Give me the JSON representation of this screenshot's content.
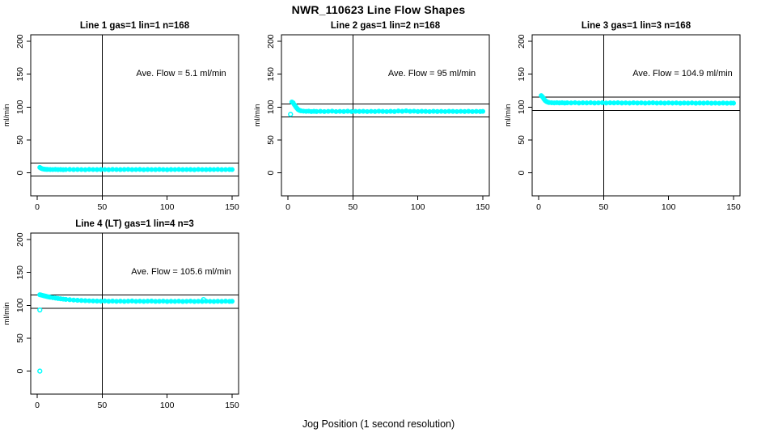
{
  "page_title": "NWR_110623  Line Flow Shapes",
  "x_axis_label": "Jog Position (1 second resolution)",
  "colors": {
    "points": "#00ffff",
    "axis": "#000000",
    "background": "#ffffff",
    "text": "#000000"
  },
  "chart_data": [
    {
      "id": "line1",
      "type": "scatter",
      "title": "Line 1 gas=1 lin=1 n=168",
      "ylabel": "ml/min",
      "annotation": "Ave. Flow =  5.1  ml/min",
      "ave_flow_ml_min": 5.1,
      "n": 168,
      "xlim": [
        -5,
        155
      ],
      "ylim": [
        -35,
        210
      ],
      "xticks": [
        "0",
        "50",
        "100",
        "150"
      ],
      "yticks": [
        "0",
        "50",
        "100",
        "150",
        "200"
      ],
      "vline_x": 50,
      "hlines": [
        15.1,
        -4.9
      ],
      "marker": "open-circle",
      "points": [
        [
          2,
          8.2
        ],
        [
          3,
          6.9
        ],
        [
          4,
          6.1
        ],
        [
          5,
          5.7
        ],
        [
          6,
          5.4
        ],
        [
          7,
          5.3
        ],
        [
          8,
          5.2
        ],
        [
          10,
          5.1
        ],
        [
          12,
          5.0
        ],
        [
          14,
          5.2
        ],
        [
          16,
          4.9
        ],
        [
          18,
          5.1
        ],
        [
          20,
          4.8
        ],
        [
          22,
          5.0
        ],
        [
          25,
          5.2
        ],
        [
          28,
          4.9
        ],
        [
          31,
          5.1
        ],
        [
          34,
          5.0
        ],
        [
          37,
          4.8
        ],
        [
          40,
          5.2
        ],
        [
          43,
          5.0
        ],
        [
          46,
          4.9
        ],
        [
          49,
          5.1
        ],
        [
          52,
          5.0
        ],
        [
          55,
          4.8
        ],
        [
          58,
          5.2
        ],
        [
          61,
          5.0
        ],
        [
          64,
          4.9
        ],
        [
          67,
          5.1
        ],
        [
          70,
          5.3
        ],
        [
          73,
          4.9
        ],
        [
          76,
          5.0
        ],
        [
          79,
          5.2
        ],
        [
          82,
          4.8
        ],
        [
          85,
          5.1
        ],
        [
          88,
          5.0
        ],
        [
          91,
          4.9
        ],
        [
          94,
          5.2
        ],
        [
          97,
          5.0
        ],
        [
          100,
          4.8
        ],
        [
          103,
          5.1
        ],
        [
          106,
          5.0
        ],
        [
          109,
          5.2
        ],
        [
          112,
          4.9
        ],
        [
          115,
          5.0
        ],
        [
          118,
          5.1
        ],
        [
          121,
          4.8
        ],
        [
          124,
          5.2
        ],
        [
          127,
          5.0
        ],
        [
          130,
          4.9
        ],
        [
          133,
          5.1
        ],
        [
          136,
          5.0
        ],
        [
          139,
          5.2
        ],
        [
          142,
          4.9
        ],
        [
          145,
          5.0
        ],
        [
          148,
          5.1
        ],
        [
          150,
          5.0
        ]
      ],
      "outliers": []
    },
    {
      "id": "line2",
      "type": "scatter",
      "title": "Line 2 gas=1 lin=2 n=168",
      "ylabel": "ml/min",
      "annotation": "Ave. Flow =  95  ml/min",
      "ave_flow_ml_min": 95,
      "n": 168,
      "xlim": [
        -5,
        155
      ],
      "ylim": [
        -35,
        210
      ],
      "xticks": [
        "0",
        "50",
        "100",
        "150"
      ],
      "yticks": [
        "0",
        "50",
        "100",
        "150",
        "200"
      ],
      "vline_x": 50,
      "hlines": [
        105,
        85
      ],
      "marker": "open-circle",
      "points": [
        [
          3,
          107.8
        ],
        [
          4,
          106.5
        ],
        [
          5,
          103.5
        ],
        [
          6,
          100.5
        ],
        [
          7,
          98.0
        ],
        [
          8,
          96.0
        ],
        [
          9,
          95.0
        ],
        [
          10,
          94.3
        ],
        [
          12,
          93.8
        ],
        [
          14,
          93.5
        ],
        [
          16,
          93.8
        ],
        [
          18,
          93.2
        ],
        [
          20,
          93.6
        ],
        [
          22,
          93.3
        ],
        [
          25,
          93.6
        ],
        [
          28,
          93.2
        ],
        [
          31,
          93.5
        ],
        [
          34,
          93.8
        ],
        [
          37,
          93.2
        ],
        [
          40,
          93.5
        ],
        [
          43,
          93.3
        ],
        [
          46,
          93.7
        ],
        [
          49,
          93.2
        ],
        [
          52,
          93.5
        ],
        [
          55,
          93.4
        ],
        [
          58,
          93.6
        ],
        [
          61,
          93.2
        ],
        [
          64,
          93.5
        ],
        [
          67,
          93.3
        ],
        [
          70,
          93.7
        ],
        [
          73,
          93.4
        ],
        [
          76,
          93.2
        ],
        [
          79,
          93.6
        ],
        [
          82,
          93.3
        ],
        [
          85,
          94.0
        ],
        [
          88,
          93.6
        ],
        [
          91,
          94.2
        ],
        [
          94,
          93.5
        ],
        [
          97,
          93.8
        ],
        [
          100,
          93.3
        ],
        [
          103,
          93.6
        ],
        [
          106,
          93.4
        ],
        [
          109,
          93.2
        ],
        [
          112,
          93.6
        ],
        [
          115,
          93.3
        ],
        [
          118,
          93.5
        ],
        [
          121,
          93.2
        ],
        [
          124,
          93.6
        ],
        [
          127,
          93.4
        ],
        [
          130,
          93.2
        ],
        [
          133,
          93.5
        ],
        [
          136,
          93.3
        ],
        [
          139,
          93.6
        ],
        [
          142,
          93.2
        ],
        [
          145,
          93.4
        ],
        [
          148,
          93.3
        ],
        [
          150,
          93.5
        ]
      ],
      "outliers": [
        [
          2,
          89
        ]
      ]
    },
    {
      "id": "line3",
      "type": "scatter",
      "title": "Line 3 gas=1 lin=3 n=168",
      "ylabel": "ml/min",
      "annotation": "Ave. Flow =  104.9  ml/min",
      "ave_flow_ml_min": 104.9,
      "n": 168,
      "xlim": [
        -5,
        155
      ],
      "ylim": [
        -35,
        210
      ],
      "xticks": [
        "0",
        "50",
        "100",
        "150"
      ],
      "yticks": [
        "0",
        "50",
        "100",
        "150",
        "200"
      ],
      "vline_x": 50,
      "hlines": [
        114.9,
        94.9
      ],
      "marker": "open-circle",
      "points": [
        [
          2,
          117.5
        ],
        [
          3,
          115.5
        ],
        [
          4,
          112.5
        ],
        [
          5,
          110.0
        ],
        [
          6,
          108.5
        ],
        [
          7,
          107.5
        ],
        [
          8,
          107.0
        ],
        [
          10,
          106.6
        ],
        [
          12,
          106.4
        ],
        [
          14,
          106.7
        ],
        [
          16,
          106.3
        ],
        [
          18,
          106.6
        ],
        [
          20,
          106.2
        ],
        [
          22,
          106.5
        ],
        [
          25,
          106.3
        ],
        [
          28,
          106.7
        ],
        [
          31,
          106.2
        ],
        [
          34,
          106.5
        ],
        [
          37,
          106.3
        ],
        [
          40,
          106.6
        ],
        [
          43,
          106.2
        ],
        [
          46,
          106.4
        ],
        [
          49,
          106.6
        ],
        [
          52,
          106.2
        ],
        [
          55,
          106.5
        ],
        [
          58,
          106.3
        ],
        [
          61,
          106.6
        ],
        [
          64,
          106.2
        ],
        [
          67,
          106.4
        ],
        [
          70,
          106.1
        ],
        [
          73,
          106.5
        ],
        [
          76,
          106.2
        ],
        [
          79,
          106.4
        ],
        [
          82,
          106.0
        ],
        [
          85,
          106.3
        ],
        [
          88,
          106.5
        ],
        [
          91,
          106.1
        ],
        [
          94,
          106.3
        ],
        [
          97,
          106.0
        ],
        [
          100,
          106.4
        ],
        [
          103,
          106.1
        ],
        [
          106,
          106.3
        ],
        [
          109,
          105.9
        ],
        [
          112,
          106.2
        ],
        [
          115,
          106.0
        ],
        [
          118,
          106.3
        ],
        [
          121,
          105.9
        ],
        [
          124,
          106.2
        ],
        [
          127,
          106.0
        ],
        [
          130,
          106.3
        ],
        [
          133,
          105.9
        ],
        [
          136,
          106.1
        ],
        [
          139,
          105.8
        ],
        [
          142,
          106.2
        ],
        [
          145,
          105.9
        ],
        [
          148,
          106.1
        ],
        [
          150,
          106.0
        ]
      ],
      "outliers": []
    },
    {
      "id": "line4",
      "type": "scatter",
      "title": "Line 4 (LT) gas=1 lin=4 n=3",
      "ylabel": "ml/min",
      "annotation": "Ave. Flow =  105.6  ml/min",
      "ave_flow_ml_min": 105.6,
      "n": 3,
      "xlim": [
        -5,
        155
      ],
      "ylim": [
        -35,
        210
      ],
      "xticks": [
        "0",
        "50",
        "100",
        "150"
      ],
      "yticks": [
        "0",
        "50",
        "100",
        "150",
        "200"
      ],
      "vline_x": 50,
      "hlines": [
        115.6,
        95.6
      ],
      "marker": "open-circle",
      "points": [
        [
          2,
          116.2
        ],
        [
          3,
          115.8
        ],
        [
          4,
          115.2
        ],
        [
          5,
          114.7
        ],
        [
          6,
          114.2
        ],
        [
          7,
          113.7
        ],
        [
          8,
          113.2
        ],
        [
          9,
          112.8
        ],
        [
          10,
          112.4
        ],
        [
          12,
          111.7
        ],
        [
          14,
          111.1
        ],
        [
          16,
          110.5
        ],
        [
          18,
          110.0
        ],
        [
          20,
          109.5
        ],
        [
          22,
          109.1
        ],
        [
          25,
          108.6
        ],
        [
          28,
          108.1
        ],
        [
          31,
          107.7
        ],
        [
          34,
          107.4
        ],
        [
          37,
          107.1
        ],
        [
          40,
          106.9
        ],
        [
          43,
          106.7
        ],
        [
          46,
          106.5
        ],
        [
          49,
          106.4
        ],
        [
          52,
          106.6
        ],
        [
          55,
          106.2
        ],
        [
          58,
          106.5
        ],
        [
          61,
          106.1
        ],
        [
          64,
          106.4
        ],
        [
          67,
          106.0
        ],
        [
          70,
          106.3
        ],
        [
          73,
          106.6
        ],
        [
          76,
          106.1
        ],
        [
          79,
          106.4
        ],
        [
          82,
          106.0
        ],
        [
          85,
          106.3
        ],
        [
          88,
          106.5
        ],
        [
          91,
          106.0
        ],
        [
          94,
          106.2
        ],
        [
          97,
          106.4
        ],
        [
          100,
          105.9
        ],
        [
          103,
          106.2
        ],
        [
          106,
          106.0
        ],
        [
          109,
          106.3
        ],
        [
          112,
          105.9
        ],
        [
          115,
          106.1
        ],
        [
          118,
          106.4
        ],
        [
          121,
          105.9
        ],
        [
          124,
          106.2
        ],
        [
          127,
          106.0
        ],
        [
          130,
          106.3
        ],
        [
          133,
          106.1
        ],
        [
          136,
          105.9
        ],
        [
          139,
          106.2
        ],
        [
          142,
          106.0
        ],
        [
          145,
          106.3
        ],
        [
          148,
          106.0
        ],
        [
          150,
          106.2
        ]
      ],
      "outliers": [
        [
          2,
          0
        ],
        [
          2,
          93
        ],
        [
          128,
          108.9
        ]
      ]
    }
  ]
}
